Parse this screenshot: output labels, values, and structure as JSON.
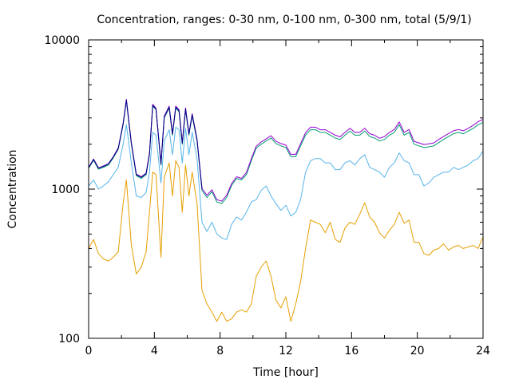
{
  "chart_data": {
    "type": "line",
    "title": "Concentration, ranges: 0-30 nm, 0-100 nm, 0-300 nm, total (5/9/1)",
    "xlabel": "Time [hour]",
    "ylabel": "Concentration",
    "xlim": [
      0,
      24
    ],
    "ylim": [
      100,
      10000
    ],
    "yscale": "log",
    "grid": false,
    "legend": "none",
    "x_ticks": [
      0,
      4,
      8,
      12,
      16,
      20,
      24
    ],
    "x_tick_labels": [
      "0",
      "4",
      "8",
      "12",
      "16",
      "20",
      "24"
    ],
    "y_ticks": [
      100,
      1000,
      10000
    ],
    "y_tick_labels": [
      "100",
      "1000",
      "10000"
    ],
    "series": [
      {
        "color": "#e69f00",
        "x": [
          0,
          0.3,
          0.6,
          0.9,
          1.2,
          1.5,
          1.8,
          2.1,
          2.3,
          2.6,
          2.9,
          3.2,
          3.5,
          3.7,
          3.9,
          4.1,
          4.4,
          4.6,
          4.9,
          5.1,
          5.3,
          5.5,
          5.7,
          5.9,
          6.1,
          6.3,
          6.6,
          6.9,
          7.2,
          7.5,
          7.8,
          8.1,
          8.4,
          8.7,
          9.0,
          9.3,
          9.6,
          9.9,
          10.2,
          10.5,
          10.8,
          11.1,
          11.4,
          11.7,
          12.0,
          12.3,
          12.6,
          12.9,
          13.2,
          13.5,
          13.8,
          14.1,
          14.4,
          14.7,
          15.0,
          15.3,
          15.6,
          15.9,
          16.2,
          16.5,
          16.8,
          17.1,
          17.4,
          17.7,
          18.0,
          18.3,
          18.6,
          18.9,
          19.2,
          19.5,
          19.8,
          20.1,
          20.4,
          20.7,
          21.0,
          21.3,
          21.6,
          21.9,
          22.2,
          22.5,
          22.8,
          23.1,
          23.4,
          23.7,
          24.0
        ],
        "values": [
          400,
          460,
          370,
          340,
          330,
          350,
          380,
          800,
          1150,
          420,
          270,
          300,
          380,
          700,
          1300,
          1250,
          350,
          1200,
          1500,
          900,
          1550,
          1400,
          700,
          1450,
          900,
          1300,
          800,
          210,
          170,
          150,
          130,
          150,
          130,
          135,
          150,
          155,
          150,
          170,
          260,
          300,
          330,
          260,
          180,
          160,
          190,
          130,
          170,
          240,
          400,
          620,
          600,
          580,
          510,
          600,
          460,
          440,
          550,
          600,
          580,
          680,
          810,
          650,
          600,
          510,
          470,
          530,
          580,
          700,
          590,
          620,
          440,
          440,
          370,
          360,
          390,
          400,
          430,
          390,
          410,
          420,
          400,
          410,
          420,
          400,
          480
        ]
      },
      {
        "color": "#56b4e9",
        "x": [
          0,
          0.3,
          0.6,
          0.9,
          1.2,
          1.5,
          1.8,
          2.1,
          2.3,
          2.6,
          2.9,
          3.2,
          3.5,
          3.7,
          3.9,
          4.1,
          4.4,
          4.6,
          4.9,
          5.1,
          5.3,
          5.5,
          5.7,
          5.9,
          6.1,
          6.3,
          6.6,
          6.9,
          7.2,
          7.5,
          7.8,
          8.1,
          8.4,
          8.7,
          9.0,
          9.3,
          9.6,
          9.9,
          10.2,
          10.5,
          10.8,
          11.1,
          11.4,
          11.7,
          12.0,
          12.3,
          12.6,
          12.9,
          13.2,
          13.5,
          13.8,
          14.1,
          14.4,
          14.7,
          15.0,
          15.3,
          15.6,
          15.9,
          16.2,
          16.5,
          16.8,
          17.1,
          17.4,
          17.7,
          18.0,
          18.3,
          18.6,
          18.9,
          19.2,
          19.5,
          19.8,
          20.1,
          20.4,
          20.7,
          21.0,
          21.3,
          21.6,
          21.9,
          22.2,
          22.5,
          22.8,
          23.1,
          23.4,
          23.7,
          24.0
        ],
        "values": [
          1050,
          1150,
          1000,
          1050,
          1120,
          1250,
          1400,
          2000,
          2700,
          1500,
          900,
          880,
          950,
          1300,
          2400,
          2300,
          1100,
          2100,
          2500,
          1700,
          2600,
          2500,
          1500,
          2550,
          1700,
          2400,
          1600,
          600,
          520,
          600,
          500,
          470,
          460,
          580,
          650,
          620,
          700,
          820,
          850,
          980,
          1050,
          900,
          800,
          720,
          780,
          660,
          700,
          850,
          1300,
          1550,
          1600,
          1600,
          1500,
          1500,
          1350,
          1350,
          1500,
          1550,
          1450,
          1600,
          1700,
          1400,
          1350,
          1300,
          1200,
          1400,
          1500,
          1750,
          1550,
          1500,
          1250,
          1250,
          1050,
          1100,
          1200,
          1250,
          1300,
          1300,
          1400,
          1350,
          1400,
          1450,
          1550,
          1600,
          1800
        ]
      },
      {
        "color": "#009e73",
        "x": [
          0,
          0.3,
          0.6,
          0.9,
          1.2,
          1.5,
          1.8,
          2.1,
          2.3,
          2.6,
          2.9,
          3.2,
          3.5,
          3.7,
          3.9,
          4.1,
          4.4,
          4.6,
          4.9,
          5.1,
          5.3,
          5.5,
          5.7,
          5.9,
          6.1,
          6.3,
          6.6,
          6.9,
          7.2,
          7.5,
          7.8,
          8.1,
          8.4,
          8.7,
          9.0,
          9.3,
          9.6,
          9.9,
          10.2,
          10.5,
          10.8,
          11.1,
          11.4,
          11.7,
          12.0,
          12.3,
          12.6,
          12.9,
          13.2,
          13.5,
          13.8,
          14.1,
          14.4,
          14.7,
          15.0,
          15.3,
          15.6,
          15.9,
          16.2,
          16.5,
          16.8,
          17.1,
          17.4,
          17.7,
          18.0,
          18.3,
          18.6,
          18.9,
          19.2,
          19.5,
          19.8,
          20.1,
          20.4,
          20.7,
          21.0,
          21.3,
          21.6,
          21.9,
          22.2,
          22.5,
          22.8,
          23.1,
          23.4,
          23.7,
          24.0
        ],
        "values": [
          1380,
          1560,
          1360,
          1400,
          1450,
          1620,
          1850,
          2700,
          3900,
          2000,
          1230,
          1180,
          1250,
          1700,
          3600,
          3400,
          1450,
          3000,
          3500,
          2300,
          3500,
          3300,
          2000,
          3400,
          2300,
          3100,
          2100,
          980,
          880,
          960,
          820,
          800,
          880,
          1060,
          1180,
          1150,
          1250,
          1550,
          1880,
          2000,
          2100,
          2200,
          2020,
          1950,
          1900,
          1650,
          1650,
          1950,
          2300,
          2500,
          2500,
          2400,
          2400,
          2300,
          2200,
          2150,
          2300,
          2450,
          2300,
          2300,
          2450,
          2250,
          2200,
          2100,
          2150,
          2300,
          2400,
          2700,
          2300,
          2400,
          2000,
          1950,
          1900,
          1920,
          1950,
          2050,
          2150,
          2250,
          2350,
          2400,
          2350,
          2450,
          2550,
          2700,
          2800
        ]
      },
      {
        "color": "#9400d3",
        "x": [
          0,
          0.3,
          0.6,
          0.9,
          1.2,
          1.5,
          1.8,
          2.1,
          2.3,
          2.6,
          2.9,
          3.2,
          3.5,
          3.7,
          3.9,
          4.1,
          4.4,
          4.6,
          4.9,
          5.1,
          5.3,
          5.5,
          5.7,
          5.9,
          6.1,
          6.3,
          6.6,
          6.9,
          7.2,
          7.5,
          7.8,
          8.1,
          8.4,
          8.7,
          9.0,
          9.3,
          9.6,
          9.9,
          10.2,
          10.5,
          10.8,
          11.1,
          11.4,
          11.7,
          12.0,
          12.3,
          12.6,
          12.9,
          13.2,
          13.5,
          13.8,
          14.1,
          14.4,
          14.7,
          15.0,
          15.3,
          15.6,
          15.9,
          16.2,
          16.5,
          16.8,
          17.1,
          17.4,
          17.7,
          18.0,
          18.3,
          18.6,
          18.9,
          19.2,
          19.5,
          19.8,
          20.1,
          20.4,
          20.7,
          21.0,
          21.3,
          21.6,
          21.9,
          22.2,
          22.5,
          22.8,
          23.1,
          23.4,
          23.7,
          24.0
        ],
        "values": [
          1400,
          1590,
          1390,
          1430,
          1480,
          1650,
          1890,
          2760,
          4000,
          2050,
          1260,
          1210,
          1280,
          1740,
          3700,
          3480,
          1490,
          3080,
          3600,
          2360,
          3600,
          3400,
          2060,
          3500,
          2360,
          3200,
          2160,
          1010,
          910,
          990,
          850,
          830,
          910,
          1090,
          1210,
          1180,
          1290,
          1600,
          1940,
          2070,
          2170,
          2280,
          2090,
          2020,
          1970,
          1710,
          1710,
          2020,
          2390,
          2600,
          2600,
          2500,
          2500,
          2400,
          2300,
          2240,
          2400,
          2560,
          2400,
          2400,
          2560,
          2350,
          2300,
          2190,
          2250,
          2400,
          2510,
          2820,
          2400,
          2510,
          2090,
          2040,
          1990,
          2010,
          2040,
          2150,
          2250,
          2360,
          2460,
          2510,
          2460,
          2560,
          2670,
          2830,
          2930
        ]
      },
      {
        "color": "#000080",
        "x": [
          0,
          0.3,
          0.6,
          0.9,
          1.2,
          1.5,
          1.8,
          2.1,
          2.3,
          2.6,
          2.9,
          3.2,
          3.5,
          3.7,
          3.9,
          4.1,
          4.4,
          4.6,
          4.9,
          5.1,
          5.3,
          5.5,
          5.7,
          5.9,
          6.1,
          6.3,
          6.6,
          6.9
        ],
        "values": [
          1390,
          1580,
          1380,
          1420,
          1470,
          1640,
          1870,
          2730,
          3950,
          2030,
          1250,
          1200,
          1270,
          1720,
          3650,
          3440,
          1470,
          3040,
          3550,
          2330,
          3550,
          3350,
          2030,
          3450,
          2330,
          3150,
          2130,
          1000
        ]
      }
    ]
  }
}
